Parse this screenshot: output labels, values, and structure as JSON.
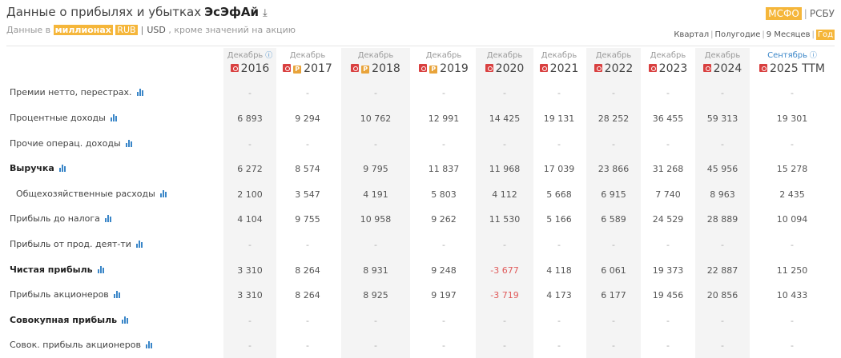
{
  "header": {
    "title_prefix": "Данные о прибылях и убытках",
    "company": "ЭсЭфАй",
    "download_icon": "download-icon"
  },
  "subtitle": {
    "prefix": "Данные в",
    "unit": "миллионах",
    "currency_active": "RUB",
    "separator": "|",
    "currency_alt": "USD",
    "suffix": ", кроме значений на акцию"
  },
  "standards": {
    "items": [
      "МСФО",
      "РСБУ"
    ],
    "active": "МСФО"
  },
  "period_toggle": {
    "items": [
      "Квартал",
      "Полугодие",
      "9 Месяцев",
      "Год"
    ],
    "active": "Год"
  },
  "columns": [
    {
      "month": "Декабрь",
      "year": "2016",
      "info": true,
      "badges": [
        "pdf-icon"
      ]
    },
    {
      "month": "Декабрь",
      "year": "2017",
      "badges": [
        "pdf-icon",
        "p-badge"
      ]
    },
    {
      "month": "Декабрь",
      "year": "2018",
      "badges": [
        "pdf-icon",
        "p-badge"
      ]
    },
    {
      "month": "Декабрь",
      "year": "2019",
      "badges": [
        "pdf-icon",
        "p-badge"
      ]
    },
    {
      "month": "Декабрь",
      "year": "2020",
      "badges": [
        "pdf-icon"
      ]
    },
    {
      "month": "Декабрь",
      "year": "2021",
      "badges": [
        "pdf-icon"
      ]
    },
    {
      "month": "Декабрь",
      "year": "2022",
      "badges": [
        "pdf-icon"
      ]
    },
    {
      "month": "Декабрь",
      "year": "2023",
      "badges": [
        "pdf-icon"
      ]
    },
    {
      "month": "Декабрь",
      "year": "2024",
      "badges": [
        "pdf-icon"
      ]
    },
    {
      "month": "Сентябрь",
      "year": "2025 TTM",
      "info": true,
      "badges": [
        "pdf-icon"
      ],
      "blue": true
    }
  ],
  "p_badge_label": "P",
  "info_icon_label": "i",
  "rows": [
    {
      "label": "Премии нетто, перестрах.",
      "values": [
        "-",
        "-",
        "-",
        "-",
        "-",
        "-",
        "-",
        "-",
        "-",
        "-"
      ]
    },
    {
      "label": "Процентные доходы",
      "values": [
        "6 893",
        "9 294",
        "10 762",
        "12 991",
        "14 425",
        "19 131",
        "28 252",
        "36 455",
        "59 313",
        "19 301"
      ]
    },
    {
      "label": "Прочие операц. доходы",
      "values": [
        "-",
        "-",
        "-",
        "-",
        "-",
        "-",
        "-",
        "-",
        "-",
        "-"
      ]
    },
    {
      "label": "Выручка",
      "bold": true,
      "values": [
        "6 272",
        "8 574",
        "9 795",
        "11 837",
        "11 968",
        "17 039",
        "23 866",
        "31 268",
        "45 956",
        "15 278"
      ]
    },
    {
      "label": "Общехозяйственные расходы",
      "indent": true,
      "values": [
        "2 100",
        "3 547",
        "4 191",
        "5 803",
        "4 112",
        "5 668",
        "6 915",
        "7 740",
        "8 963",
        "2 435"
      ]
    },
    {
      "label": "Прибыль до налога",
      "values": [
        "4 104",
        "9 755",
        "10 958",
        "9 262",
        "11 530",
        "5 166",
        "6 589",
        "24 529",
        "28 889",
        "10 094"
      ]
    },
    {
      "label": "Прибыль от прод. деят-ти",
      "values": [
        "-",
        "-",
        "-",
        "-",
        "-",
        "-",
        "-",
        "-",
        "-",
        "-"
      ]
    },
    {
      "label": "Чистая прибыль",
      "bold": true,
      "values": [
        "3 310",
        "8 264",
        "8 931",
        "9 248",
        "-3 677",
        "4 118",
        "6 061",
        "19 373",
        "22 887",
        "11 250"
      ]
    },
    {
      "label": "Прибыль акционеров",
      "values": [
        "3 310",
        "8 264",
        "8 925",
        "9 197",
        "-3 719",
        "4 173",
        "6 177",
        "19 456",
        "20 856",
        "10 433"
      ]
    },
    {
      "label": "Совокупная прибыль",
      "bold": true,
      "values": [
        "-",
        "-",
        "-",
        "-",
        "-",
        "-",
        "-",
        "-",
        "-",
        "-"
      ]
    },
    {
      "label": "Совок. прибыль акционеров",
      "values": [
        "-",
        "-",
        "-",
        "-",
        "-",
        "-",
        "-",
        "-",
        "-",
        "-"
      ]
    }
  ],
  "colors": {
    "accent": "#f5b63a",
    "negative": "#e05a5a",
    "link": "#3a86c8",
    "pdf": "#d94040"
  }
}
